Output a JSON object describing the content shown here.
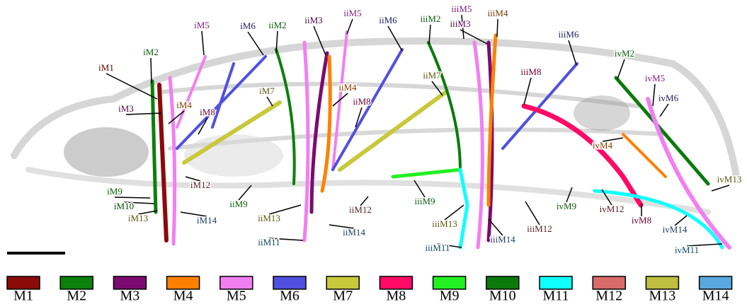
{
  "figure": {
    "labels": [
      {
        "text": "iM1",
        "color": "#6b0000"
      },
      {
        "text": "iM2",
        "color": "#0a5a0a"
      },
      {
        "text": "iM3",
        "color": "#4a0a44"
      },
      {
        "text": "iM4",
        "color": "#7a3a00"
      },
      {
        "text": "iM5",
        "color": "#7a207a"
      },
      {
        "text": "iM6",
        "color": "#20205a"
      },
      {
        "text": "iiM2",
        "color": "#0a5a0a"
      },
      {
        "text": "iiM3",
        "color": "#4a0a44"
      },
      {
        "text": "iiM5",
        "color": "#7a207a"
      },
      {
        "text": "iiM6",
        "color": "#20205a"
      },
      {
        "text": "iiiM2",
        "color": "#0a5a0a"
      },
      {
        "text": "iiiM5",
        "color": "#7a207a"
      },
      {
        "text": "iiiM3",
        "color": "#4a0a44"
      },
      {
        "text": "iiiM4",
        "color": "#7a3a00"
      },
      {
        "text": "iiiM6",
        "color": "#20205a"
      },
      {
        "text": "ivM2",
        "color": "#0a5a0a"
      },
      {
        "text": "ivM5",
        "color": "#7a207a"
      },
      {
        "text": "ivM6",
        "color": "#20205a"
      },
      {
        "text": "iiiM8",
        "color": "#6a0030"
      },
      {
        "text": "iiM7",
        "color": "#5a5a10"
      },
      {
        "text": "iM7",
        "color": "#5a5a10"
      },
      {
        "text": "iM8",
        "color": "#6a0030"
      },
      {
        "text": "iiM4",
        "color": "#7a3a00"
      },
      {
        "text": "iiM8",
        "color": "#6a0030"
      },
      {
        "text": "ivM4",
        "color": "#7a3a00"
      },
      {
        "text": "iM12",
        "color": "#5a2020"
      },
      {
        "text": "iM9",
        "color": "#0a5a0a"
      },
      {
        "text": "iM10",
        "color": "#0a4a0a"
      },
      {
        "text": "iM13",
        "color": "#5a5a10"
      },
      {
        "text": "iM14",
        "color": "#1a3a5a"
      },
      {
        "text": "iiM9",
        "color": "#0a5a0a"
      },
      {
        "text": "iiM13",
        "color": "#5a5a10"
      },
      {
        "text": "iiM11",
        "color": "#0a4a5a"
      },
      {
        "text": "iiM14",
        "color": "#1a3a5a"
      },
      {
        "text": "iiM12",
        "color": "#5a2020"
      },
      {
        "text": "iiiM9",
        "color": "#0a5a0a"
      },
      {
        "text": "iiiM13",
        "color": "#5a5a10"
      },
      {
        "text": "iiiM11",
        "color": "#0a4a5a"
      },
      {
        "text": "iiiM14",
        "color": "#1a3a5a"
      },
      {
        "text": "iiiM12",
        "color": "#5a2020"
      },
      {
        "text": "ivM9",
        "color": "#0a5a0a"
      },
      {
        "text": "ivM12",
        "color": "#5a2020"
      },
      {
        "text": "ivM8",
        "color": "#6a0030"
      },
      {
        "text": "ivM14",
        "color": "#1a3a5a"
      },
      {
        "text": "ivM11",
        "color": "#0a4a5a"
      },
      {
        "text": "ivM13",
        "color": "#5a5a10"
      }
    ],
    "legend": [
      {
        "name": "M1",
        "color": "#8b0a0a"
      },
      {
        "name": "M2",
        "color": "#0b800b"
      },
      {
        "name": "M3",
        "color": "#7d0a70"
      },
      {
        "name": "M4",
        "color": "#ff8000"
      },
      {
        "name": "M5",
        "color": "#f27ff2"
      },
      {
        "name": "M6",
        "color": "#5050e0"
      },
      {
        "name": "M7",
        "color": "#c8c83c"
      },
      {
        "name": "M8",
        "color": "#ff0a66"
      },
      {
        "name": "M9",
        "color": "#22f022"
      },
      {
        "name": "M10",
        "color": "#0b7a0b"
      },
      {
        "name": "M11",
        "color": "#10ffff"
      },
      {
        "name": "M12",
        "color": "#d96b6b"
      },
      {
        "name": "M13",
        "color": "#bebe40"
      },
      {
        "name": "M14",
        "color": "#5aa8e0"
      }
    ]
  }
}
